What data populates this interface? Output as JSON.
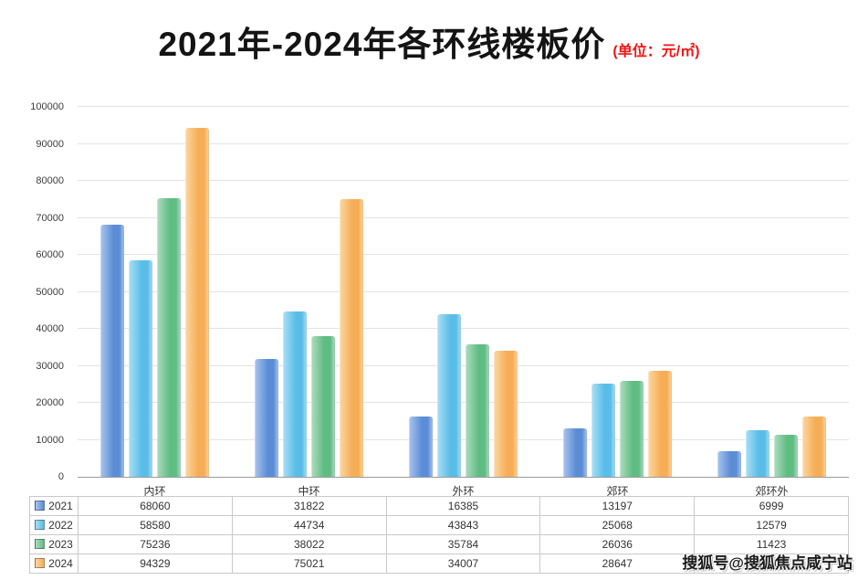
{
  "header": {
    "title": "2021年-2024年各环线楼板价",
    "subtitle": "(单位：元/㎡)"
  },
  "watermark": "搜狐号@搜狐焦点咸宁站",
  "chart_data": {
    "type": "bar",
    "title": "2021年-2024年各环线楼板价",
    "unit_label": "元/㎡",
    "categories": [
      "内环",
      "中环",
      "外环",
      "郊环",
      "郊环外"
    ],
    "series": [
      {
        "name": "2021",
        "color": "#5b8dd6",
        "color_light": "#a9c5ee",
        "values": [
          68060,
          31822,
          16385,
          13197,
          6999
        ]
      },
      {
        "name": "2022",
        "color": "#59bde7",
        "color_light": "#abdff5",
        "values": [
          58580,
          44734,
          43843,
          25068,
          12579
        ]
      },
      {
        "name": "2023",
        "color": "#5fbc83",
        "color_light": "#aedcc0",
        "values": [
          75236,
          38022,
          35784,
          26036,
          11423
        ]
      },
      {
        "name": "2024",
        "color": "#f6ad56",
        "color_light": "#fcd7a2",
        "values": [
          94329,
          75021,
          34007,
          28647,
          16400
        ]
      }
    ],
    "ylim": [
      0,
      100000
    ],
    "ytick_step": 10000,
    "grid": true,
    "legend_position": "table-left",
    "xlabel": "",
    "ylabel": ""
  }
}
